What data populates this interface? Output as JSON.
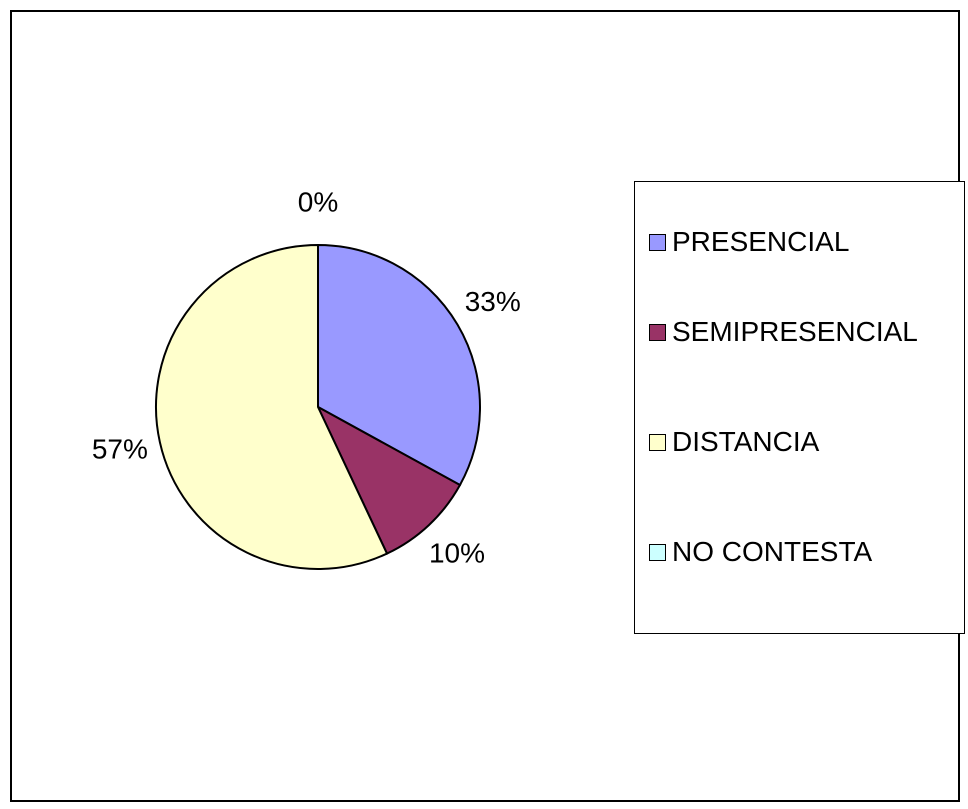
{
  "chart_data": {
    "type": "pie",
    "categories": [
      "PRESENCIAL",
      "SEMIPRESENCIAL",
      "DISTANCIA",
      "NO CONTESTA"
    ],
    "values": [
      33,
      10,
      57,
      0
    ],
    "value_labels": [
      "33%",
      "10%",
      "57%",
      "0%"
    ],
    "colors": [
      "#9999ff",
      "#993366",
      "#ffffcc",
      "#ccffff"
    ],
    "legend": "right"
  }
}
